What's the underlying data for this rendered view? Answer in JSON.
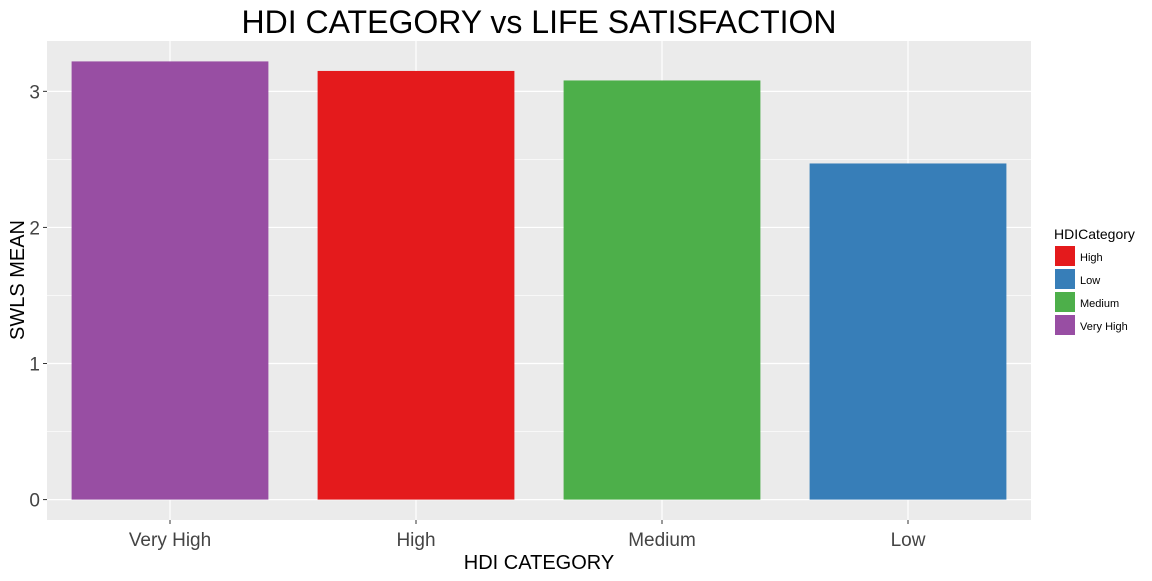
{
  "chart_data": {
    "type": "bar",
    "title": "HDI CATEGORY vs LIFE SATISFACTION",
    "xlabel": "HDI CATEGORY",
    "ylabel": "SWLS MEAN",
    "categories": [
      "Very High",
      "High",
      "Medium",
      "Low"
    ],
    "values": [
      3.22,
      3.15,
      3.08,
      2.47
    ],
    "bar_colors": [
      "#984EA3",
      "#E41A1C",
      "#4DAF4A",
      "#377EB8"
    ],
    "ylim": [
      -0.15,
      3.37
    ],
    "yticks": [
      0,
      1,
      2,
      3
    ],
    "grid": true,
    "panel_background": "#EBEBEB",
    "legend": {
      "title": "HDICategory",
      "position": "right",
      "items": [
        {
          "label": "High",
          "color": "#E41A1C"
        },
        {
          "label": "Low",
          "color": "#377EB8"
        },
        {
          "label": "Medium",
          "color": "#4DAF4A"
        },
        {
          "label": "Very High",
          "color": "#984EA3"
        }
      ]
    }
  }
}
